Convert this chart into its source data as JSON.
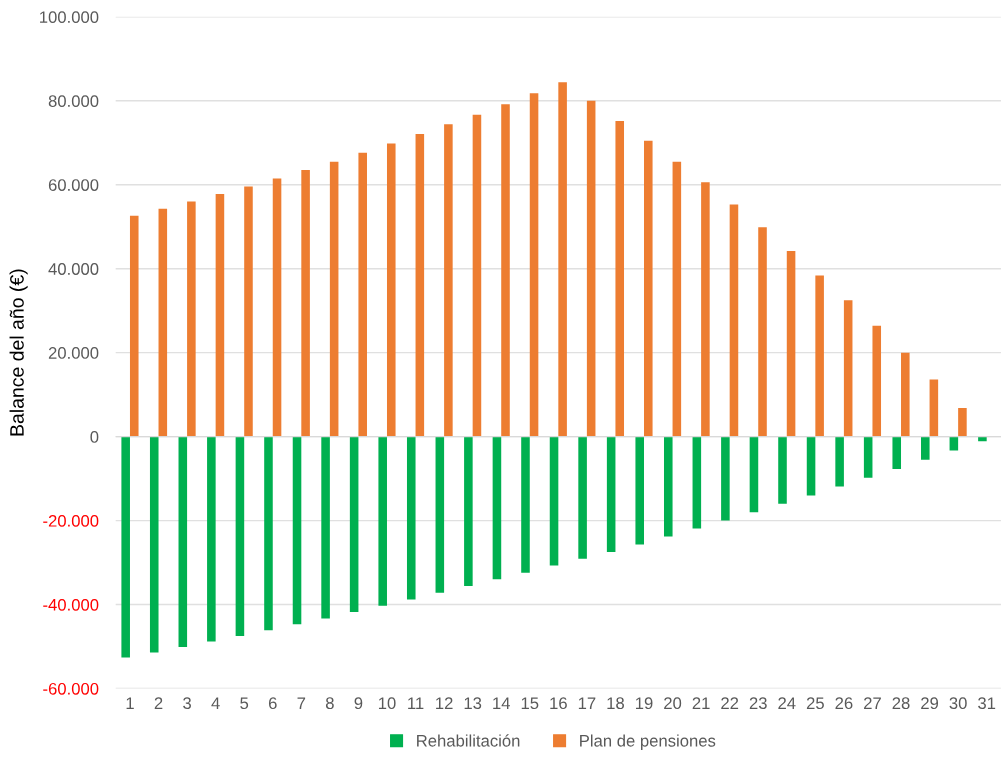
{
  "chart_data": {
    "type": "bar",
    "ylabel": "Balance del año (€)",
    "categories": [
      "1",
      "2",
      "3",
      "4",
      "5",
      "6",
      "7",
      "8",
      "9",
      "10",
      "11",
      "12",
      "13",
      "14",
      "15",
      "16",
      "17",
      "18",
      "19",
      "20",
      "21",
      "22",
      "23",
      "24",
      "25",
      "26",
      "27",
      "28",
      "29",
      "30",
      "31"
    ],
    "series": [
      {
        "name": "Rehabilitación",
        "color": "#00b050",
        "values": [
          -52600,
          -51400,
          -50100,
          -48800,
          -47500,
          -46100,
          -44700,
          -43300,
          -41800,
          -40300,
          -38800,
          -37200,
          -35600,
          -34000,
          -32400,
          -30700,
          -29100,
          -27500,
          -25700,
          -23800,
          -21900,
          -20000,
          -18000,
          -16000,
          -14000,
          -11900,
          -9800,
          -7700,
          -5500,
          -3300,
          -1100
        ]
      },
      {
        "name": "Plan de pensiones",
        "color": "#ed7d31",
        "values": [
          52600,
          54300,
          56000,
          57800,
          59600,
          61500,
          63500,
          65500,
          67600,
          69800,
          72100,
          74400,
          76700,
          79200,
          81800,
          84400,
          80000,
          75200,
          70500,
          65500,
          60600,
          55300,
          49900,
          44200,
          38400,
          32500,
          26400,
          20000,
          13600,
          6800,
          0
        ]
      }
    ],
    "ylim": [
      -60000,
      100000
    ],
    "yticks": [
      {
        "value": -60000,
        "label": "-60.000"
      },
      {
        "value": -40000,
        "label": "-40.000"
      },
      {
        "value": -20000,
        "label": "-20.000"
      },
      {
        "value": 0,
        "label": "0"
      },
      {
        "value": 20000,
        "label": "20.000"
      },
      {
        "value": 40000,
        "label": "40.000"
      },
      {
        "value": 60000,
        "label": "60.000"
      },
      {
        "value": 80000,
        "label": "80.000"
      },
      {
        "value": 100000,
        "label": "100.000"
      }
    ],
    "grid": "y",
    "legend": "bottom"
  }
}
